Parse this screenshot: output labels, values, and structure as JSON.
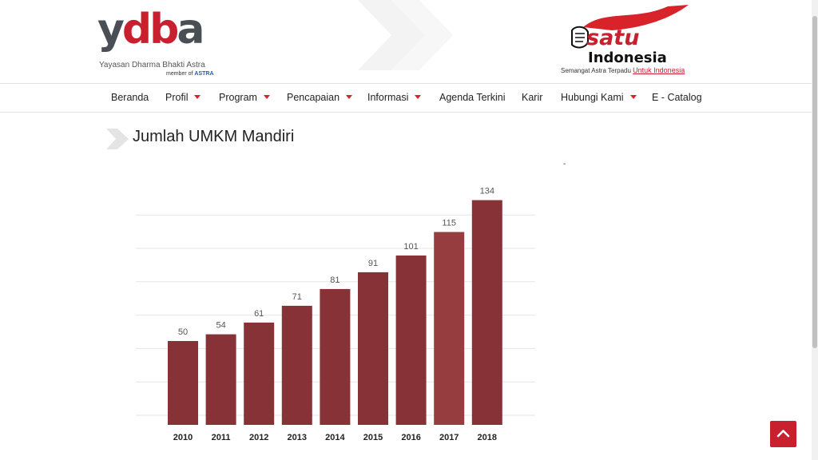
{
  "header": {
    "logo": {
      "mark_part1": "y",
      "mark_part2": "db",
      "mark_part3": "a",
      "name": "Yayasan Dharma Bhakti Astra",
      "member_prefix": "member of",
      "member_brand": "ASTRA"
    },
    "satu_logo": {
      "satu": "satu",
      "indonesia": "Indonesia",
      "tagline": "Semangat Astra Terpadu",
      "tagline_highlight": "Untuk Indonesia"
    }
  },
  "nav": {
    "items": [
      {
        "label": "Beranda",
        "dropdown": false
      },
      {
        "label": "Profil",
        "dropdown": true
      },
      {
        "label": "Program",
        "dropdown": true
      },
      {
        "label": "Pencapaian",
        "dropdown": true
      },
      {
        "label": "Informasi",
        "dropdown": true
      },
      {
        "label": "Agenda Terkini",
        "dropdown": false
      },
      {
        "label": "Karir",
        "dropdown": false
      },
      {
        "label": "Hubungi Kami",
        "dropdown": true
      },
      {
        "label": "E - Catalog",
        "dropdown": false
      }
    ]
  },
  "main": {
    "title": "Jumlah UMKM Mandiri",
    "dash": "-"
  },
  "chart_data": {
    "type": "bar",
    "categories": [
      "2010",
      "2011",
      "2012",
      "2013",
      "2014",
      "2015",
      "2016",
      "2017",
      "2018"
    ],
    "values": [
      50,
      54,
      61,
      71,
      81,
      91,
      101,
      115,
      134
    ],
    "title": "",
    "xlabel": "",
    "ylabel": "",
    "ylim": [
      0,
      140
    ],
    "grid": true,
    "bar_color": "#873237",
    "highlight_color": "#963d40"
  },
  "colors": {
    "accent": "#c8202f",
    "logo_grey": "#4a4f56"
  },
  "icons": {
    "back_to_top": "chevron-up-icon",
    "title_marker": "chevron-right-icon"
  }
}
